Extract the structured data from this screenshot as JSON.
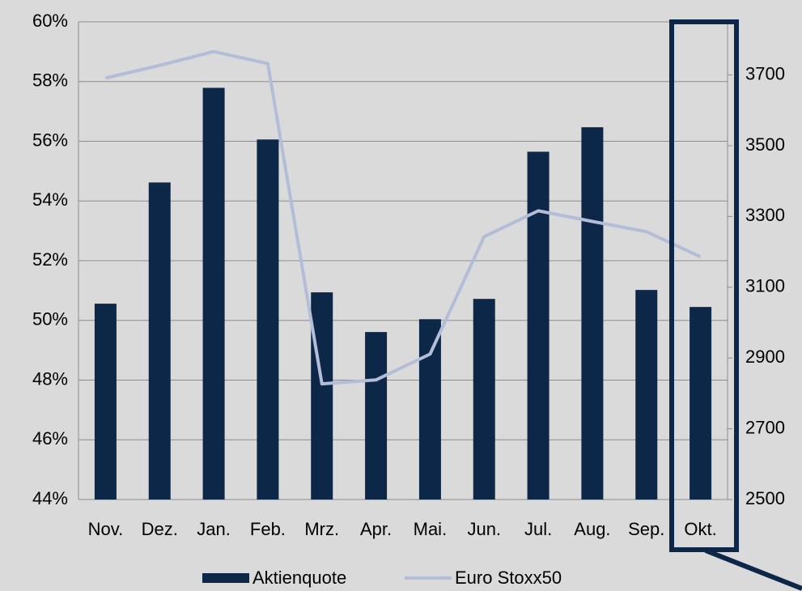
{
  "chart_data": {
    "type": "bar",
    "categories": [
      "Nov.",
      "Dez.",
      "Jan.",
      "Feb.",
      "Mrz.",
      "Apr.",
      "Mai.",
      "Jun.",
      "Jul.",
      "Aug.",
      "Sep.",
      "Okt."
    ],
    "series": [
      {
        "name": "Aktienquote",
        "type": "bar",
        "color": "#0c2748",
        "values": [
          50.56,
          54.62,
          57.79,
          56.06,
          50.94,
          49.61,
          50.04,
          50.72,
          55.65,
          56.47,
          51.02,
          50.45
        ]
      },
      {
        "name": "Euro Stoxx50",
        "type": "line",
        "axis": "y2",
        "color": "#b4bdd8",
        "values": [
          3691,
          3727,
          3766,
          3732,
          2827,
          2838,
          2911,
          3243,
          3316,
          3286,
          3257,
          3186
        ]
      }
    ],
    "ylim": [
      44,
      60
    ],
    "yticks": [
      {
        "value": 44,
        "label": "44%"
      },
      {
        "value": 46,
        "label": "46%"
      },
      {
        "value": 48,
        "label": "48%"
      },
      {
        "value": 50,
        "label": "50%"
      },
      {
        "value": 52,
        "label": "52%"
      },
      {
        "value": 54,
        "label": "54%"
      },
      {
        "value": 56,
        "label": "56%"
      },
      {
        "value": 58,
        "label": "58%"
      },
      {
        "value": 60,
        "label": "60%"
      }
    ],
    "y2lim": [
      2500,
      3850
    ],
    "y2ticks": [
      2500,
      2700,
      2900,
      3100,
      3300,
      3500,
      3700
    ],
    "grid": true,
    "legend": "bottom"
  }
}
